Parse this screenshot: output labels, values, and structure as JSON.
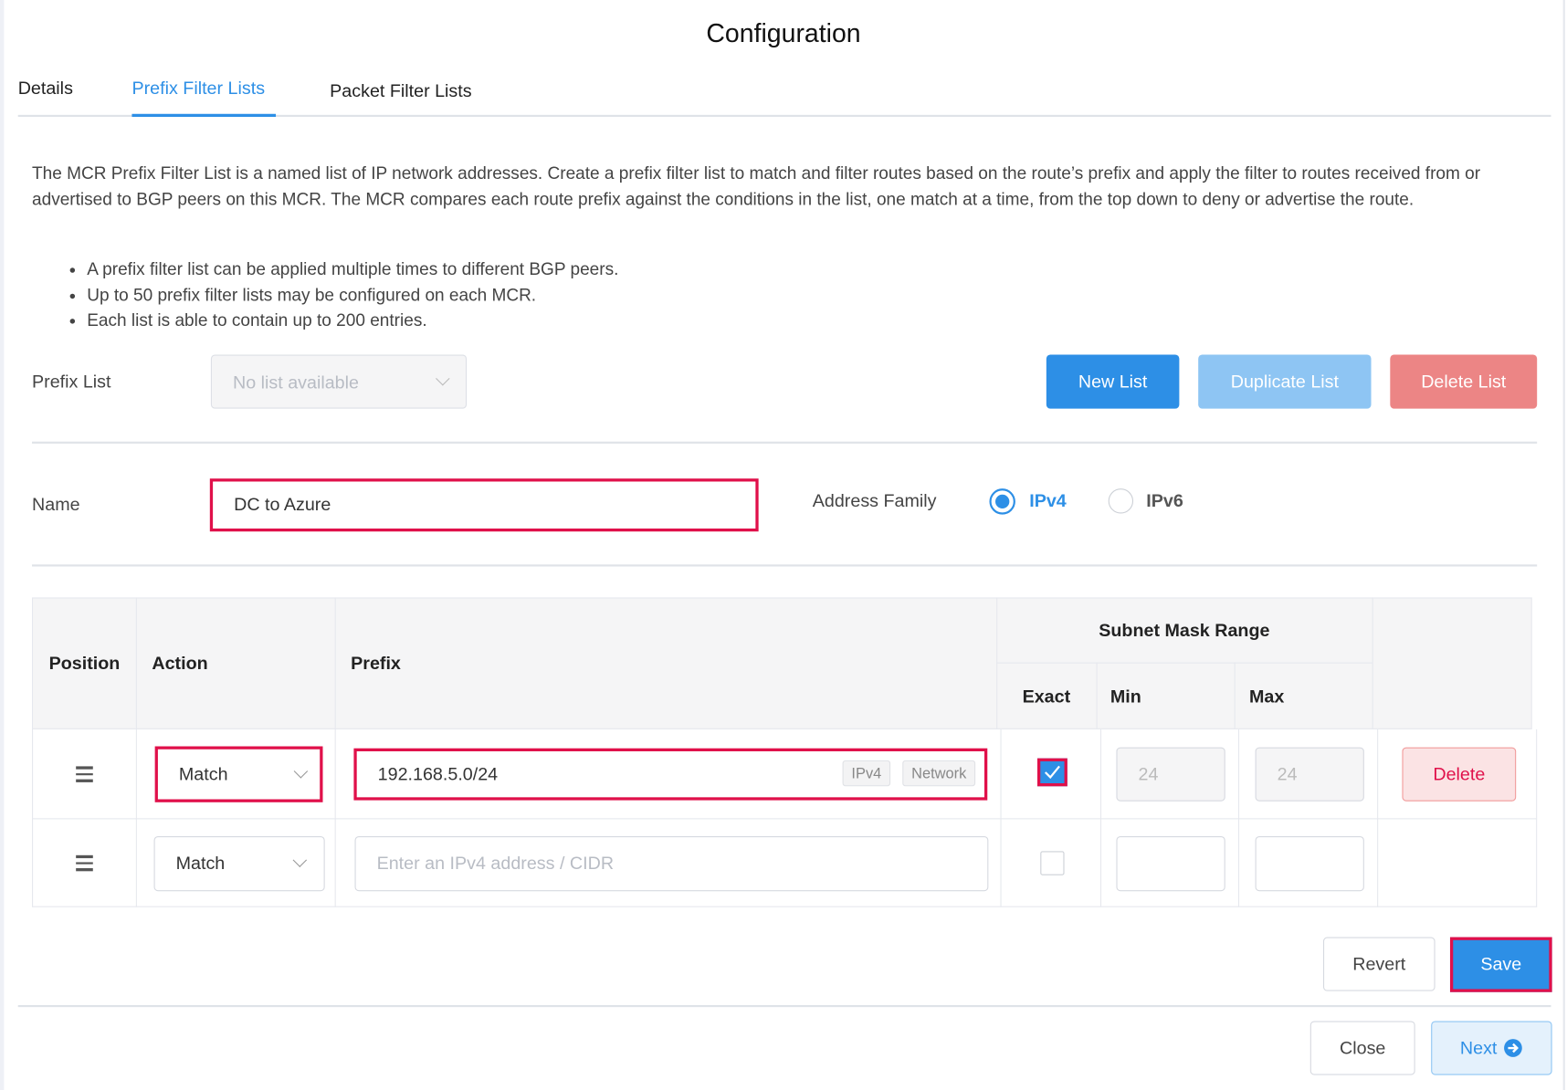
{
  "title": "Configuration",
  "tabs": [
    {
      "label": "Details",
      "active": false
    },
    {
      "label": "Prefix Filter Lists",
      "active": true
    },
    {
      "label": "Packet Filter Lists",
      "active": false
    }
  ],
  "description": "The MCR Prefix Filter List is a named list of IP network addresses. Create a prefix filter list to match and filter routes based on the route’s prefix and apply the filter to routes received from or advertised to BGP peers on this MCR. The MCR compares each route prefix against the conditions in the list, one match at a time, from the top down to deny or advertise the route.",
  "bullets": [
    "A prefix filter list can be applied multiple times to different BGP peers.",
    "Up to 50 prefix filter lists may be configured on each MCR.",
    "Each list is able to contain up to 200 entries."
  ],
  "prefix_list": {
    "label": "Prefix List",
    "placeholder": "No list available"
  },
  "buttons": {
    "new_list": "New List",
    "duplicate_list": "Duplicate List",
    "delete_list": "Delete List",
    "revert": "Revert",
    "save": "Save",
    "close": "Close",
    "next": "Next"
  },
  "name": {
    "label": "Name",
    "value": "DC to Azure"
  },
  "address_family": {
    "label": "Address Family",
    "options": [
      "IPv4",
      "IPv6"
    ],
    "selected": "IPv4"
  },
  "table": {
    "headers": {
      "position": "Position",
      "action": "Action",
      "prefix": "Prefix",
      "subnet_mask_range": "Subnet Mask Range",
      "exact": "Exact",
      "min": "Min",
      "max": "Max"
    },
    "rows": [
      {
        "action": "Match",
        "prefix": "192.168.5.0/24",
        "tags": [
          "IPv4",
          "Network"
        ],
        "exact": true,
        "min": "24",
        "max": "24",
        "delete_label": "Delete"
      },
      {
        "action": "Match",
        "prefix_placeholder": "Enter an IPv4 address / CIDR",
        "exact": false,
        "min": "",
        "max": ""
      }
    ]
  },
  "colors": {
    "accent": "#2d8fe6",
    "highlight": "#e0104a",
    "danger": "#ec8585"
  }
}
